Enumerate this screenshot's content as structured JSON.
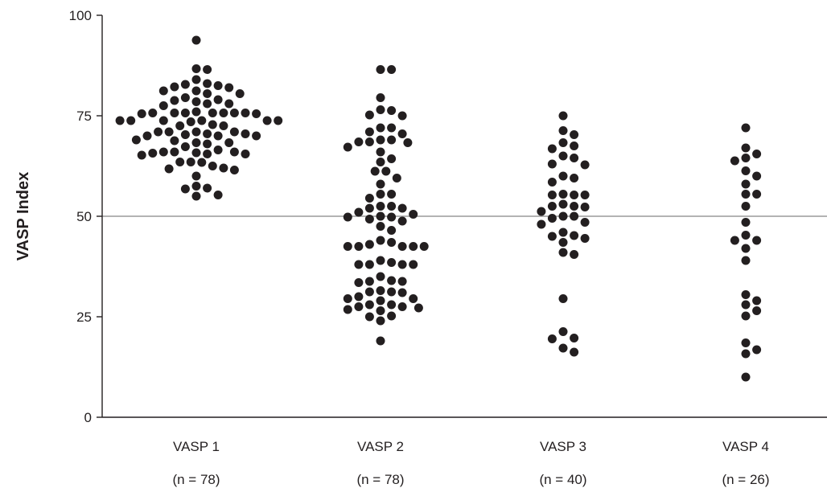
{
  "chart_data": {
    "type": "scatter",
    "title": "",
    "xlabel": "",
    "ylabel": "VASP Index",
    "ylim": [
      0,
      100
    ],
    "yticks": [
      "0",
      "25",
      "50",
      "75",
      "100"
    ],
    "reference_line": 50,
    "grid": false,
    "legend": "none",
    "colors": {
      "points": "#231f20",
      "reference_line": "#9a9a9a",
      "axis": "#231f20"
    },
    "categories": [
      "VASP 1",
      "VASP 2",
      "VASP 3",
      "VASP 4"
    ],
    "group_counts": [
      "(n = 78)",
      "(n = 78)",
      "(n = 40)",
      "(n = 26)"
    ],
    "groups": [
      {
        "category": "VASP 1",
        "values": [
          93.8,
          86.5,
          86.7,
          84,
          82.8,
          82.2,
          81.2,
          81.2,
          82,
          82.5,
          83,
          79,
          79.5,
          80.5,
          80.5,
          78.8,
          78,
          78.5,
          78,
          77.5,
          75.7,
          75.7,
          75.7,
          75.7,
          76,
          75.7,
          75.7,
          75.7,
          75.5,
          75.5,
          73.8,
          73.8,
          73.8,
          73.8,
          73.8,
          73.8,
          72.8,
          73.5,
          72.5,
          72.5,
          70.3,
          70.5,
          71,
          71,
          71,
          71,
          70.5,
          70,
          70,
          70,
          68.3,
          68.3,
          68.8,
          69,
          68,
          67.3,
          66,
          65.8,
          65.7,
          65.5,
          65.2,
          65.5,
          66,
          66.5,
          66,
          63.4,
          62.5,
          62,
          61.5,
          61.8,
          63.5,
          63.5,
          60,
          57,
          56.8,
          57.5,
          55.3,
          55
        ]
      },
      {
        "category": "VASP 2",
        "values": [
          86.5,
          86.5,
          79.5,
          76.3,
          76.5,
          75,
          75.2,
          72,
          72,
          71,
          70.5,
          69,
          69,
          68.3,
          68.5,
          68.5,
          67.2,
          66,
          64.3,
          63.5,
          61.2,
          61.2,
          59.5,
          58,
          55.5,
          55.5,
          54.5,
          52.5,
          52.5,
          52,
          52,
          51,
          50.5,
          50,
          49.8,
          49.8,
          49.3,
          48.8,
          47.5,
          46.5,
          44,
          43.5,
          43,
          42.5,
          42.5,
          42.5,
          42.5,
          42.5,
          39,
          38.5,
          38,
          38,
          38,
          38,
          35,
          34,
          33.8,
          33.8,
          33.5,
          31.2,
          31.5,
          31.2,
          31,
          30,
          29.5,
          29.5,
          29,
          28,
          28,
          27.5,
          27.5,
          27.2,
          26.8,
          26.5,
          25.2,
          25,
          24,
          19
        ]
      },
      {
        "category": "VASP 3",
        "values": [
          75,
          71.3,
          70.3,
          68.3,
          67.5,
          66.8,
          65,
          64.5,
          63,
          62.8,
          60,
          59.5,
          58.5,
          55.5,
          55.3,
          55.3,
          55.3,
          53,
          52.3,
          52.5,
          52.5,
          51.2,
          50,
          50,
          49.5,
          48.5,
          48,
          46,
          45.2,
          45,
          44.5,
          43.5,
          41,
          40.5,
          29.5,
          21.3,
          19.7,
          19.5,
          17.2,
          16.2
        ]
      },
      {
        "category": "VASP 4",
        "values": [
          72,
          67,
          65.5,
          64.5,
          63.8,
          61.3,
          60,
          58,
          55.5,
          55.5,
          52.5,
          48.5,
          45.3,
          44,
          44,
          42,
          39,
          30.5,
          29,
          28,
          26.5,
          25.2,
          18.5,
          16.8,
          15.8,
          10
        ]
      }
    ]
  }
}
